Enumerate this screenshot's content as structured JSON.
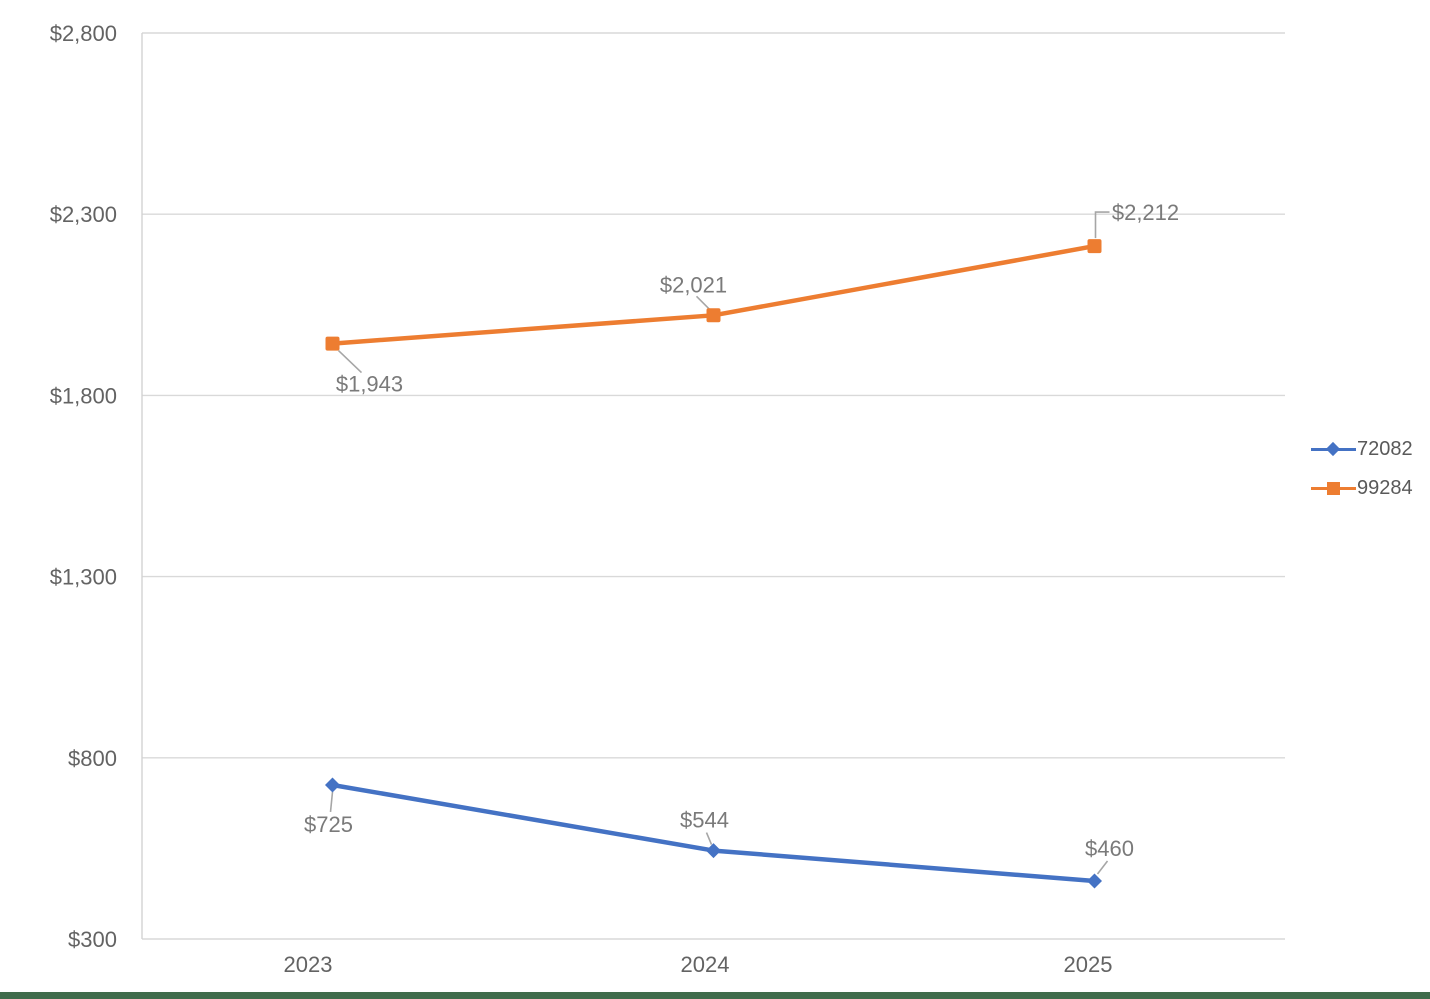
{
  "chart_data": {
    "type": "line",
    "title": "",
    "xlabel": "",
    "ylabel": "",
    "categories": [
      "2023",
      "2024",
      "2025"
    ],
    "series": [
      {
        "name": "72082",
        "color": "#4472C4",
        "marker": "diamond",
        "values": [
          725,
          544,
          460
        ],
        "data_labels": [
          {
            "text": "$725",
            "dx": -4,
            "dy": 39,
            "leader": [
              [
                0,
                7
              ],
              [
                -2,
                27
              ]
            ]
          },
          {
            "text": "$544",
            "dx": -9,
            "dy": -31,
            "leader": [
              [
                -7,
                -18
              ],
              [
                -2,
                -6
              ]
            ]
          },
          {
            "text": "$460",
            "dx": 15,
            "dy": -33,
            "leader": [
              [
                3,
                -7
              ],
              [
                13,
                -20
              ]
            ]
          }
        ]
      },
      {
        "name": "99284",
        "color": "#ED7D31",
        "marker": "square",
        "values": [
          1943,
          2021,
          2212
        ],
        "data_labels": [
          {
            "text": "$1,943",
            "dx": 37,
            "dy": 40,
            "leader": [
              [
                6,
                7
              ],
              [
                29,
                29
              ]
            ]
          },
          {
            "text": "$2,021",
            "dx": -20,
            "dy": -31,
            "leader": [
              [
                -17,
                -19
              ],
              [
                -4,
                -6
              ]
            ]
          },
          {
            "text": "$2,212",
            "dx": 51,
            "dy": -34,
            "leader": [
              [
                1,
                -8
              ],
              [
                1,
                -34
              ],
              [
                15,
                -34
              ]
            ]
          }
        ]
      }
    ],
    "ylim": [
      300,
      2800
    ],
    "yticks": [
      {
        "value": 300,
        "label": "$300"
      },
      {
        "value": 800,
        "label": "$800"
      },
      {
        "value": 1300,
        "label": "$1,300"
      },
      {
        "value": 1800,
        "label": "$1,800"
      },
      {
        "value": 2300,
        "label": "$2,300"
      },
      {
        "value": 2800,
        "label": "$2,800"
      }
    ],
    "grid": true,
    "legend_position": "right",
    "colors": {
      "grid": "#D9D9D9",
      "axis_line": "#D2D2D2",
      "tick_text": "#636363",
      "data_label_text": "#7a7a7a",
      "leader": "#A6A6A6"
    }
  },
  "window": {
    "bottom_bar_color": "#3F6C4C"
  }
}
